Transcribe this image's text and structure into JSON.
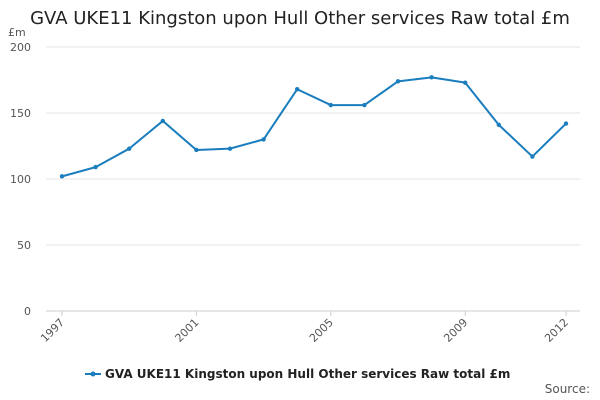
{
  "chart_data": {
    "type": "line",
    "title": "GVA UKE11 Kingston upon Hull Other services Raw total £m",
    "ylabel": "£m",
    "xlabel": "",
    "ylim": [
      0,
      200
    ],
    "yticks": [
      0,
      50,
      100,
      150,
      200
    ],
    "xlim": [
      1997,
      2012
    ],
    "xticks": [
      1997,
      2001,
      2005,
      2009,
      2012
    ],
    "series": [
      {
        "name": "GVA UKE11 Kingston upon Hull Other services Raw total £m",
        "color": "#1a7dbd",
        "x": [
          1997,
          1998,
          1999,
          2000,
          2001,
          2002,
          2003,
          2004,
          2005,
          2006,
          2007,
          2008,
          2009,
          2010,
          2011,
          2012
        ],
        "values": [
          102,
          109,
          123,
          144,
          122,
          123,
          130,
          168,
          156,
          156,
          174,
          177,
          173,
          141,
          117,
          142
        ]
      }
    ],
    "legend_position": "bottom-center",
    "source_text": "Source:"
  }
}
